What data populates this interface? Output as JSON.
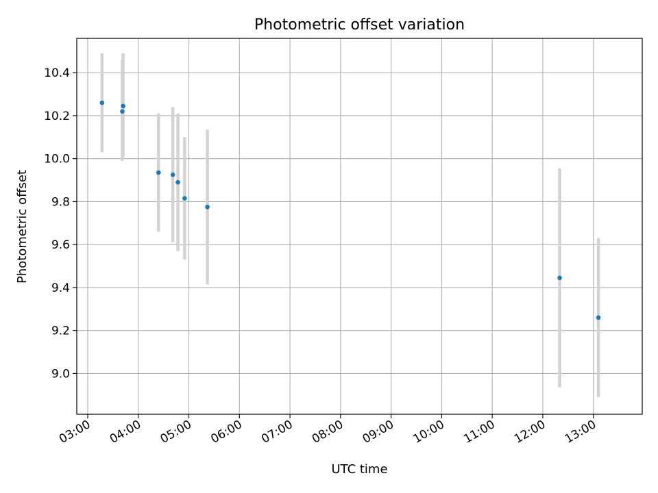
{
  "chart_data": {
    "type": "scatter",
    "title": "Photometric offset variation",
    "xlabel": "UTC time",
    "ylabel": "Photometric offset",
    "x_ticks": [
      "03:00",
      "04:00",
      "05:00",
      "06:00",
      "07:00",
      "08:00",
      "09:00",
      "10:00",
      "11:00",
      "12:00",
      "13:00"
    ],
    "y_ticks": [
      "9.0",
      "9.2",
      "9.4",
      "9.6",
      "9.8",
      "10.0",
      "10.2",
      "10.4"
    ],
    "xlim": [
      "02:47",
      "13:58"
    ],
    "ylim": [
      8.81,
      10.56
    ],
    "grid": true,
    "point_color": "#1f77b4",
    "errorbar_color": "#d3d3d3",
    "points": [
      {
        "t": "03:17",
        "y": 10.26,
        "lo": 10.03,
        "hi": 10.49
      },
      {
        "t": "03:41",
        "y": 10.22,
        "lo": 9.99,
        "hi": 10.46
      },
      {
        "t": "03:42",
        "y": 10.245,
        "lo": 10.01,
        "hi": 10.49
      },
      {
        "t": "04:24",
        "y": 9.935,
        "lo": 9.66,
        "hi": 10.21
      },
      {
        "t": "04:41",
        "y": 9.925,
        "lo": 9.61,
        "hi": 10.24
      },
      {
        "t": "04:47",
        "y": 9.89,
        "lo": 9.57,
        "hi": 10.21
      },
      {
        "t": "04:55",
        "y": 9.815,
        "lo": 9.53,
        "hi": 10.1
      },
      {
        "t": "05:22",
        "y": 9.775,
        "lo": 9.415,
        "hi": 10.135
      },
      {
        "t": "12:20",
        "y": 9.445,
        "lo": 8.935,
        "hi": 9.955
      },
      {
        "t": "13:06",
        "y": 9.26,
        "lo": 8.89,
        "hi": 9.63
      }
    ]
  }
}
